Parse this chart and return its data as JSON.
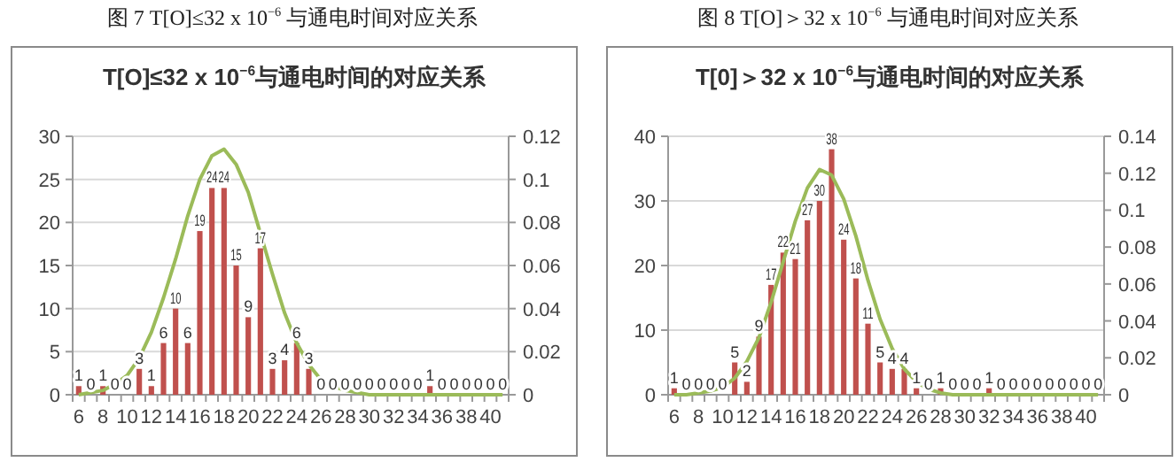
{
  "chart_data": [
    {
      "type": "bar",
      "title": "T[O]≤32 x 10$^{−6}$与通电时间的对应关系",
      "annotations": [
        "图 7 T[O]≤32 x 10$^{−6}$ 与通电时间对应关系"
      ],
      "categories": [
        "6",
        null,
        "8",
        null,
        "10",
        null,
        "12",
        null,
        "14",
        null,
        "16",
        null,
        "18",
        null,
        "20",
        null,
        "22",
        null,
        "24",
        null,
        "26",
        null,
        "28",
        null,
        "30",
        null,
        "32",
        null,
        "34",
        null,
        "36",
        null,
        "38",
        null,
        "40",
        null
      ],
      "series": [
        {
          "color": "#c0504d",
          "values": [
            1,
            0,
            1,
            0,
            0,
            3,
            1,
            6,
            10,
            6,
            19,
            24,
            24,
            15,
            9,
            17,
            3,
            4,
            6,
            3,
            0,
            0,
            0,
            0,
            0,
            0,
            0,
            0,
            0,
            1,
            0,
            0,
            0,
            0,
            0,
            0
          ],
          "value_labels": [
            "1",
            "0",
            "1",
            "0",
            "0",
            "3",
            "1",
            "6",
            "10",
            "6",
            "19",
            "24",
            "24",
            "15",
            "9",
            "17",
            "3",
            "4",
            "6",
            "3",
            "0",
            "0",
            "0",
            "0",
            "0",
            "0",
            "0",
            "0",
            "0",
            "1",
            "0",
            "0",
            "0",
            "0",
            "0",
            "0"
          ]
        },
        {
          "type": "line",
          "axis": "y2",
          "color": "#9bbb59",
          "values": [
            0,
            0.001,
            0.002,
            0.005,
            0.009,
            0.017,
            0.029,
            0.045,
            0.063,
            0.083,
            0.1,
            0.111,
            0.114,
            0.107,
            0.094,
            0.075,
            0.056,
            0.038,
            0.024,
            0.014,
            0.007,
            0.004,
            0.002,
            0.001,
            0,
            0,
            0,
            0,
            0,
            0,
            0,
            0,
            0,
            0,
            0,
            0
          ]
        }
      ],
      "ylim": [
        0,
        30
      ],
      "yticks": [
        0,
        5,
        10,
        15,
        20,
        25,
        30
      ],
      "y2lim": [
        0,
        0.12
      ],
      "y2ticks": [
        0,
        0.02,
        0.04,
        0.06,
        0.08,
        0.1,
        0.12
      ],
      "grid": "y"
    },
    {
      "type": "bar",
      "title": "T[0]＞32 x 10$^{−6}$与通电时间的对应关系",
      "annotations": [
        "图 8 T[O]＞32 x 10$^{−6}$ 与通电时间对应关系"
      ],
      "categories": [
        "6",
        null,
        "8",
        null,
        "10",
        null,
        "12",
        null,
        "14",
        null,
        "16",
        null,
        "18",
        null,
        "20",
        null,
        "22",
        null,
        "24",
        null,
        "26",
        null,
        "28",
        null,
        "30",
        null,
        "32",
        null,
        "34",
        null,
        "36",
        null,
        "38",
        null,
        "40",
        null
      ],
      "series": [
        {
          "color": "#c0504d",
          "values": [
            1,
            0,
            0,
            0,
            0,
            5,
            2,
            9,
            17,
            22,
            21,
            27,
            30,
            38,
            24,
            18,
            11,
            5,
            4,
            4,
            1,
            0,
            1,
            0,
            0,
            0,
            1,
            0,
            0,
            0,
            0,
            0,
            0,
            0,
            0,
            0
          ],
          "value_labels": [
            "1",
            "0",
            "0",
            "0",
            "0",
            "5",
            "2",
            "9",
            "17",
            "22",
            "21",
            "27",
            "30",
            "38",
            "24",
            "18",
            "11",
            "5",
            "4",
            "4",
            "1",
            "0",
            "1",
            "0",
            "0",
            "0",
            "1",
            "0",
            "0",
            "0",
            "0",
            "0",
            "0",
            "0",
            "0",
            "0"
          ]
        },
        {
          "type": "line",
          "axis": "y2",
          "color": "#9bbb59",
          "values": [
            0,
            0,
            0.001,
            0.002,
            0.004,
            0.009,
            0.018,
            0.031,
            0.05,
            0.072,
            0.094,
            0.112,
            0.122,
            0.119,
            0.106,
            0.086,
            0.062,
            0.041,
            0.025,
            0.014,
            0.007,
            0.003,
            0.001,
            0,
            0,
            0,
            0,
            0,
            0,
            0,
            0,
            0,
            0,
            0,
            0,
            0
          ]
        }
      ],
      "ylim": [
        0,
        40
      ],
      "yticks": [
        0,
        10,
        20,
        30,
        40
      ],
      "y2lim": [
        0,
        0.14
      ],
      "y2ticks": [
        0,
        0.02,
        0.04,
        0.06,
        0.08,
        0.1,
        0.12,
        0.14
      ],
      "grid": "y"
    }
  ]
}
